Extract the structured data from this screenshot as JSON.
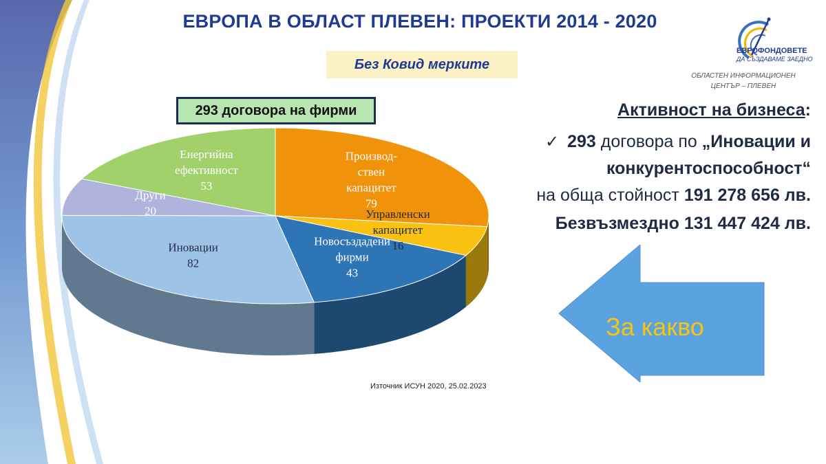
{
  "title": "ЕВРОПА В ОБЛАСТ ПЛЕВЕН: ПРОЕКТИ 2014 - 2020",
  "subtitle": "Без Ковид мерките",
  "logo": {
    "name": "ЕВРОФОНДОВЕТЕ",
    "tagline": "ДА СЪЗДАВАМЕ ЗАЕДНО",
    "accent": "#1f3a93"
  },
  "info_center": {
    "line1": "ОБЛАСТЕН ИНФОРМАЦИОНЕН",
    "line2": "ЦЕНТЪР – ПЛЕВЕН"
  },
  "contracts_label": "293 договора на фирми",
  "chart_data": {
    "type": "pie",
    "style": "3d",
    "slices": [
      {
        "label_lines": [
          "Производ-",
          "ствен",
          "капацитет"
        ],
        "value": 79,
        "color": "#f0920a",
        "label_color": "#ffffff"
      },
      {
        "label_lines": [
          "Управленски",
          "капацитет"
        ],
        "value": 16,
        "color": "#f9c112",
        "label_color": "#1f2a44"
      },
      {
        "label_lines": [
          "Новосъздадени",
          "фирми"
        ],
        "value": 43,
        "color": "#2e75b6",
        "label_color": "#ffffff"
      },
      {
        "label_lines": [
          "Иновации"
        ],
        "value": 82,
        "color": "#9dc3e6",
        "label_color": "#1f2a44"
      },
      {
        "label_lines": [
          "Други"
        ],
        "value": 20,
        "color": "#aeb4dc",
        "label_color": "#ffffff"
      },
      {
        "label_lines": [
          "Енергийна",
          "ефективност"
        ],
        "value": 53,
        "color": "#a2d16b",
        "label_color": "#ffffff"
      }
    ]
  },
  "source": "Източник ИСУН 2020,  25.02.2023",
  "activity": {
    "heading": "Активност на бизнеса",
    "heading_colon": ":",
    "check": "✓",
    "count": "293",
    "text1": " договора по ",
    "program": "„Иновации и",
    "program2": "конкурентоспособност“",
    "total_label": "на обща стойност ",
    "total_value": "191 278 656 лв.",
    "grant_label": "Безвъзмездно  131 447 424 лв."
  },
  "arrow": {
    "label": "За какво",
    "color": "#5ba3e0",
    "label_color": "#f5c60f"
  }
}
